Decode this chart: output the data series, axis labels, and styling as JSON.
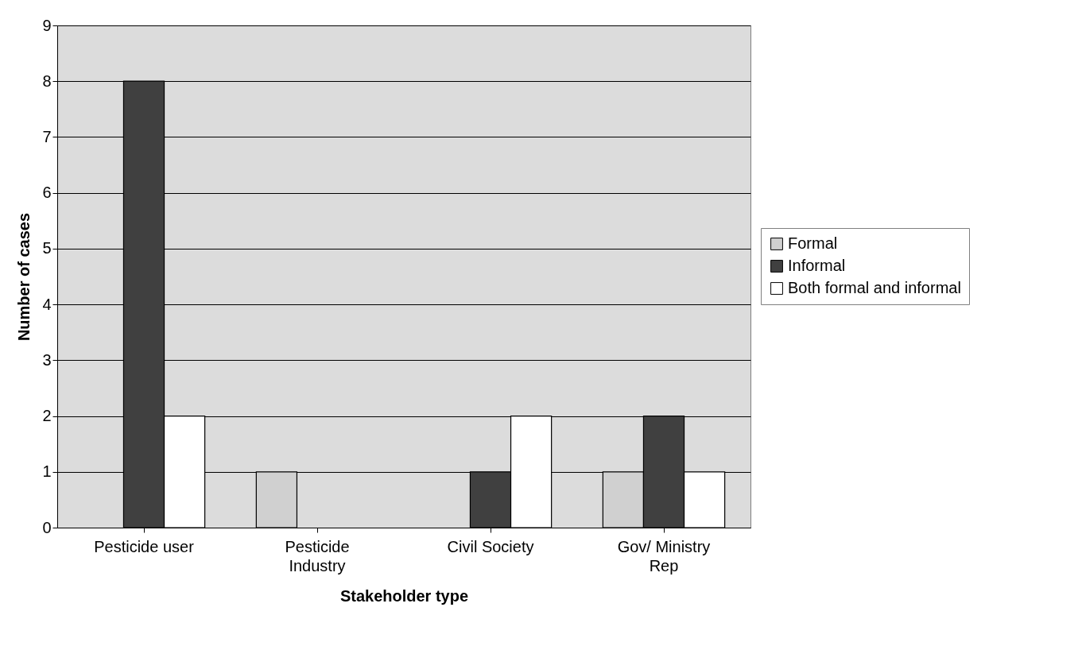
{
  "chart_data": {
    "type": "bar",
    "xlabel": "Stakeholder type",
    "ylabel": "Number of cases",
    "categories": [
      "Pesticide user",
      "Pesticide Industry",
      "Civil Society",
      "Gov/ Ministry Rep"
    ],
    "series": [
      {
        "name": "Formal",
        "color": "#d0d0d0",
        "values": [
          0,
          1,
          0,
          1
        ]
      },
      {
        "name": "Informal",
        "color": "#404040",
        "values": [
          8,
          0,
          1,
          2
        ]
      },
      {
        "name": "Both formal and informal",
        "color": "#ffffff",
        "values": [
          2,
          0,
          2,
          1
        ]
      }
    ],
    "ylim": [
      0,
      9
    ],
    "yticks": [
      0,
      1,
      2,
      3,
      4,
      5,
      6,
      7,
      8,
      9
    ],
    "grid": "y",
    "legend": "right"
  }
}
